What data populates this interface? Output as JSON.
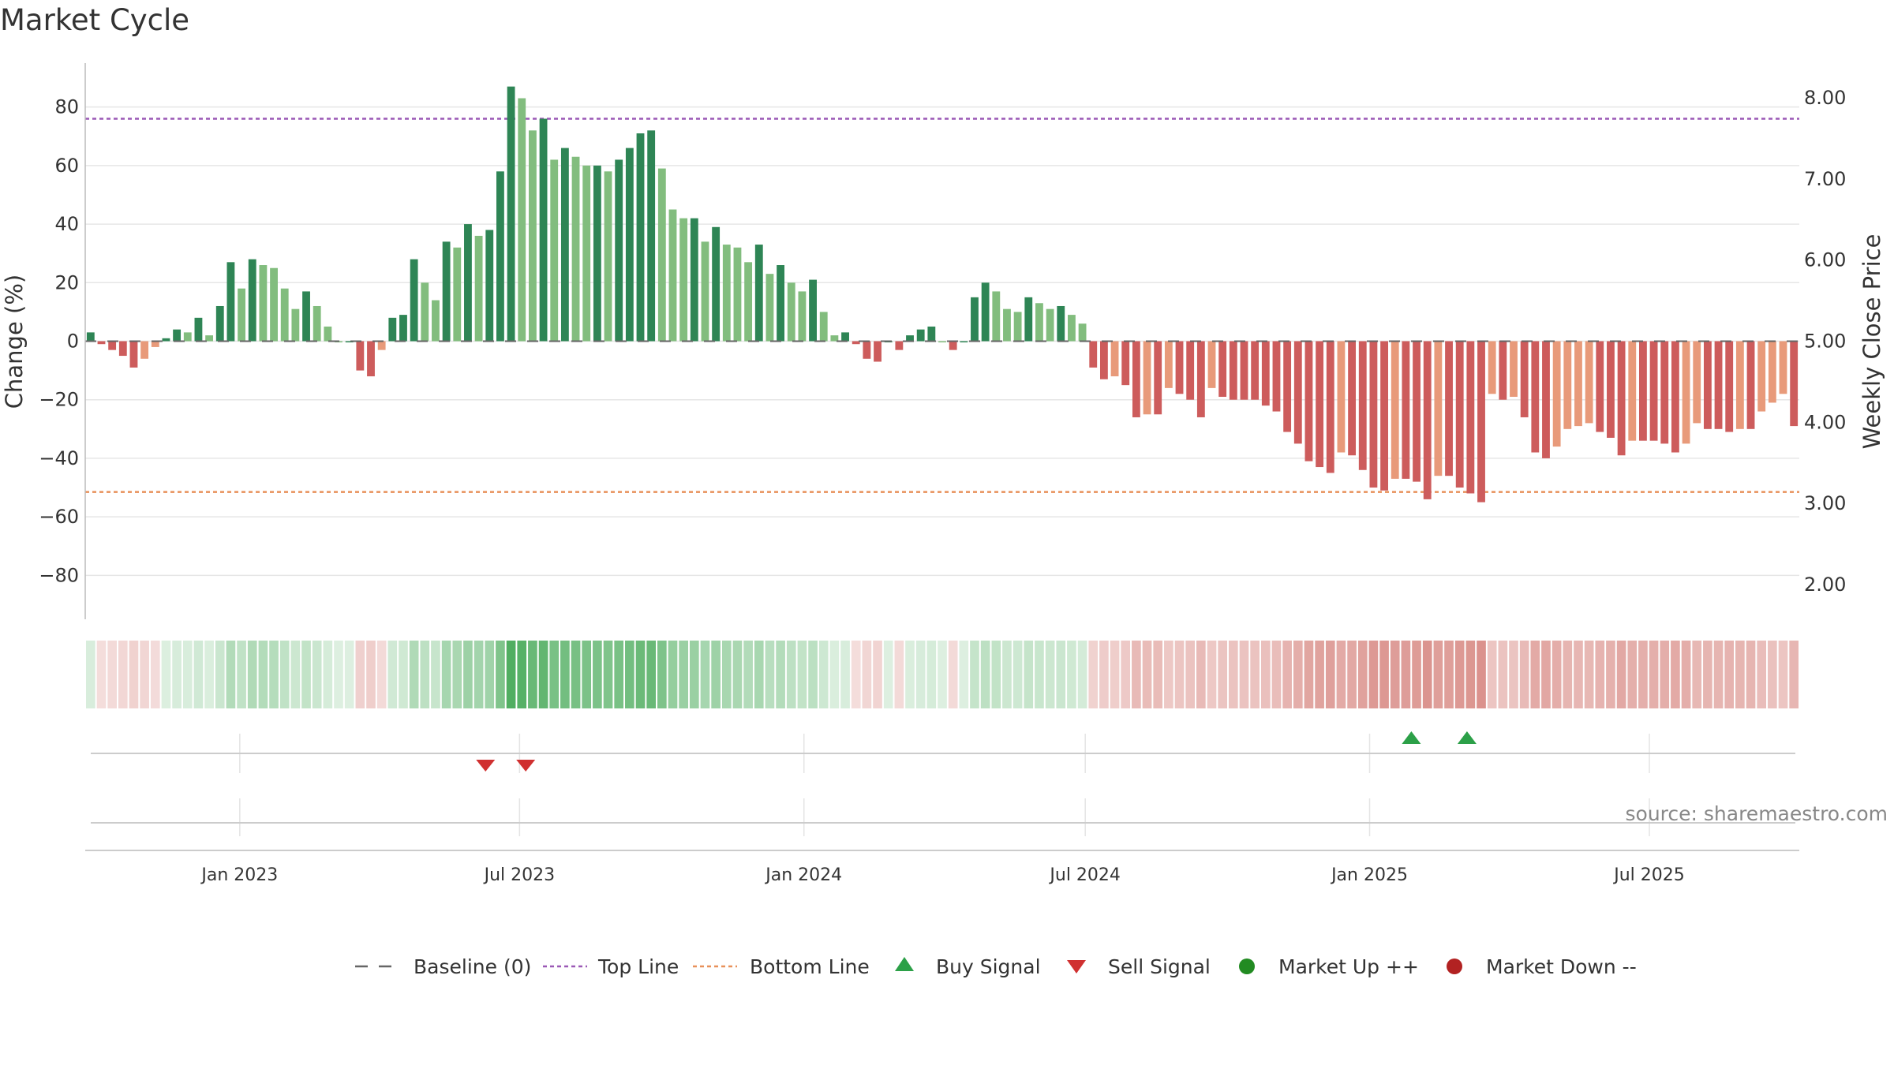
{
  "chart_data": {
    "type": "bar",
    "title": "Market Cycle",
    "ylabel": "Change (%)",
    "y2label": "Weekly Close Price",
    "ylim": [
      -95,
      95
    ],
    "y2lim": [
      1.57,
      8.43
    ],
    "yticks": [
      80,
      60,
      40,
      20,
      0,
      -20,
      -40,
      -60,
      -80
    ],
    "y2ticks": [
      "8.00",
      "7.00",
      "6.00",
      "5.00",
      "4.00",
      "3.00",
      "2.00"
    ],
    "y2tick_values": [
      8,
      7,
      6,
      5,
      4,
      3,
      2
    ],
    "top_line": 76,
    "bottom_line": -51.5,
    "x_start": "2022-09-23",
    "x_end": "2025-10-06",
    "xticks": [
      {
        "label": "Jan 2023",
        "date": "2023-01-01"
      },
      {
        "label": "Jul 2023",
        "date": "2023-07-01"
      },
      {
        "label": "Jan 2024",
        "date": "2024-01-01"
      },
      {
        "label": "Jul 2024",
        "date": "2024-07-01"
      },
      {
        "label": "Jan 2025",
        "date": "2025-01-01"
      },
      {
        "label": "Jul 2025",
        "date": "2025-07-01"
      }
    ],
    "values": [
      3,
      -1,
      -3,
      -5,
      -9,
      -6,
      -2,
      1,
      4,
      3,
      8,
      2,
      12,
      27,
      18,
      28,
      26,
      25,
      18,
      11,
      17,
      12,
      5,
      0,
      0,
      -10,
      -12,
      -3,
      8,
      9,
      28,
      20,
      14,
      34,
      32,
      40,
      36,
      38,
      58,
      87,
      83,
      72,
      76,
      62,
      66,
      63,
      60,
      60,
      58,
      62,
      66,
      71,
      72,
      59,
      45,
      42,
      42,
      34,
      39,
      33,
      32,
      27,
      33,
      23,
      26,
      20,
      17,
      21,
      10,
      2,
      3,
      -1,
      -6,
      -7,
      0,
      -3,
      2,
      4,
      5,
      0,
      -3,
      0,
      15,
      20,
      17,
      11,
      10,
      15,
      13,
      11,
      12,
      9,
      6,
      -9,
      -13,
      -12,
      -15,
      -26,
      -25,
      -25,
      -16,
      -18,
      -20,
      -26,
      -16,
      -19,
      -20,
      -20,
      -20,
      -22,
      -24,
      -31,
      -35,
      -41,
      -43,
      -45,
      -38,
      -39,
      -44,
      -50,
      -51,
      -47,
      -47,
      -48,
      -54,
      -46,
      -46,
      -50,
      -52,
      -55,
      -18,
      -20,
      -19,
      -26,
      -38,
      -40,
      -36,
      -30,
      -29,
      -28,
      -31,
      -33,
      -39,
      -34,
      -34,
      -34,
      -35,
      -38,
      -35,
      -28,
      -30,
      -30,
      -31,
      -30,
      -30,
      -24,
      -21,
      -18,
      -29
    ],
    "signals": [
      {
        "type": "sell",
        "date": "2023-06-09"
      },
      {
        "type": "sell",
        "date": "2023-07-05"
      },
      {
        "type": "buy",
        "date": "2025-01-28"
      },
      {
        "type": "buy",
        "date": "2025-03-05"
      }
    ],
    "colors": {
      "up_strong": "#2e8555",
      "up_light": "#82bd7e",
      "down_strong": "#cd5c5c",
      "down_light": "#e89a7a",
      "top_line": "#9b59b6",
      "bottom_line": "#e8915a",
      "buy": "#2ca048",
      "sell": "#d03030",
      "baseline": "#666666"
    },
    "legend": [
      {
        "label": "Baseline (0)",
        "marker": "dash"
      },
      {
        "label": "Top Line",
        "marker": "dot-purple"
      },
      {
        "label": "Bottom Line",
        "marker": "dot-orange"
      },
      {
        "label": "Buy Signal",
        "marker": "triangle-up"
      },
      {
        "label": "Sell Signal",
        "marker": "triangle-down"
      },
      {
        "label": "Market Up ++",
        "marker": "circle-green"
      },
      {
        "label": "Market Down --",
        "marker": "circle-red"
      }
    ],
    "source": "source: sharemaestro.com"
  }
}
